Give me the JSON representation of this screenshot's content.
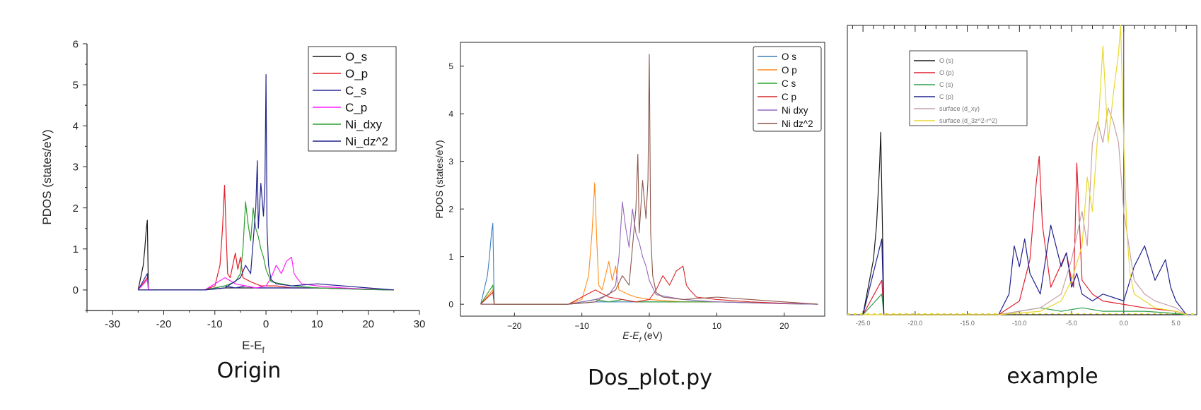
{
  "panels": [
    {
      "caption": "Origin",
      "ylabel": "PDOS (states/eV)",
      "xlabel": "E-E",
      "xlabel_sub": "f",
      "xlabel_unit": "",
      "xlim": [
        -35,
        30
      ],
      "ylim": [
        -0.5,
        6
      ],
      "xticks": [
        "-30",
        "-20",
        "-10",
        "0",
        "10",
        "20",
        "30"
      ],
      "yticks": [
        "0",
        "1",
        "2",
        "3",
        "4",
        "5",
        "6"
      ],
      "legend": [
        "O_s",
        "O_p",
        "C_s",
        "C_p",
        "Ni_dxy",
        "Ni_dz^2"
      ]
    },
    {
      "caption": "Dos_plot.py",
      "ylabel": "PDOS (states/eV)",
      "xlabel": "E-E",
      "xlabel_sub": "f",
      "xlabel_unit": " (eV)",
      "xlim": [
        -28,
        26
      ],
      "ylim": [
        -0.25,
        5.5
      ],
      "xticks": [
        "−20",
        "−10",
        "0",
        "10",
        "20"
      ],
      "yticks": [
        "0",
        "1",
        "2",
        "3",
        "4",
        "5"
      ],
      "legend": [
        "O s",
        "O p",
        "C s",
        "C p",
        "Ni dxy",
        "Ni dz^2"
      ]
    },
    {
      "caption": "example",
      "ylabel": "",
      "xlabel": "",
      "xlabel_sub": "",
      "xlabel_unit": "",
      "xlim": [
        -26.5,
        7
      ],
      "ylim": [
        0,
        4.2
      ],
      "xticks": [
        "-25.0",
        "-20.0",
        "-15.0",
        "-10.0",
        "-5.0",
        "0.0",
        "5.0"
      ],
      "yticks": [],
      "legend": [
        "O (s)",
        "O (p)",
        "C (s)",
        "C (p)",
        "surface (d_xy)",
        "surface (d_3z^2-r^2)"
      ]
    }
  ],
  "colors": {
    "origin": [
      "#1a1a1a",
      "#e0202a",
      "#2a2aa0",
      "#ff20ff",
      "#2e9e2e",
      "#22228c"
    ],
    "dosplot": [
      "#3b7fbf",
      "#ff8c1a",
      "#2ca02c",
      "#d62728",
      "#9467bd",
      "#8c564b"
    ],
    "example": [
      "#1a1a1a",
      "#e02030",
      "#30a050",
      "#202090",
      "#c8a0a8",
      "#e8d830"
    ]
  },
  "chart_data": [
    {
      "type": "line",
      "title": "",
      "xlabel": "E-Ef",
      "ylabel": "PDOS (states/eV)",
      "xlim": [
        -35,
        30
      ],
      "ylim": [
        -0.5,
        6
      ],
      "legend_position": "top-right",
      "series": [
        {
          "name": "O_s",
          "x": [
            -25,
            -24.5,
            -24,
            -23.7,
            -23.4,
            -23.2,
            -23,
            -22,
            -12,
            -8,
            -5,
            0,
            10,
            20,
            25
          ],
          "y": [
            0,
            0.3,
            0.6,
            1.0,
            1.5,
            1.7,
            0,
            0,
            0,
            0.05,
            0.05,
            0.05,
            0.05,
            0.02,
            0
          ]
        },
        {
          "name": "O_p",
          "x": [
            -25,
            -23.2,
            -23,
            -12,
            -10,
            -9,
            -8.5,
            -8.1,
            -7.8,
            -7.5,
            -7,
            -6,
            -5.5,
            -5,
            -4.5,
            -3,
            -2,
            -1,
            0,
            2,
            5,
            10,
            20,
            25
          ],
          "y": [
            0,
            0.3,
            0,
            0,
            0.1,
            0.6,
            1.5,
            2.55,
            1.4,
            0.4,
            0.3,
            0.9,
            0.5,
            0.8,
            0.3,
            0.2,
            0.15,
            0.1,
            0.1,
            0.1,
            0.05,
            0.05,
            0.02,
            0
          ]
        },
        {
          "name": "C_s",
          "x": [
            -25,
            -23.2,
            -23,
            -12,
            -10,
            -8,
            -6,
            -4,
            -2,
            0,
            5,
            10,
            15,
            20,
            25
          ],
          "y": [
            0,
            0.4,
            0,
            0,
            0.05,
            0.1,
            0.05,
            0.1,
            0.05,
            0.05,
            0.05,
            0.05,
            0.03,
            0.01,
            0
          ]
        },
        {
          "name": "C_p",
          "x": [
            -25,
            -23.2,
            -23,
            -12,
            -8,
            -6,
            -4,
            -2,
            0,
            1,
            2,
            3,
            4,
            5,
            5.5,
            6,
            7,
            10,
            15,
            20,
            25
          ],
          "y": [
            0,
            0.25,
            0,
            0,
            0.3,
            0.15,
            0.1,
            0.05,
            0.1,
            0.3,
            0.6,
            0.4,
            0.7,
            0.8,
            0.4,
            0.3,
            0.15,
            0.1,
            0.05,
            0.02,
            0
          ]
        },
        {
          "name": "Ni_dxy",
          "x": [
            -25,
            -12,
            -8,
            -6,
            -5,
            -4.5,
            -4,
            -3.5,
            -3,
            -2.5,
            -2,
            -1.5,
            -1,
            -0.5,
            0,
            1,
            3,
            5,
            10,
            15,
            20,
            25
          ],
          "y": [
            0,
            0,
            0.1,
            0.2,
            0.4,
            1.0,
            2.15,
            1.6,
            1.2,
            2.0,
            1.5,
            1.3,
            1.0,
            0.8,
            0.5,
            0.2,
            0.15,
            0.1,
            0.05,
            0.03,
            0.01,
            0
          ]
        },
        {
          "name": "Ni_dz^2",
          "x": [
            -25,
            -12,
            -8,
            -5,
            -4,
            -3,
            -2.5,
            -2,
            -1.7,
            -1.5,
            -1,
            -0.5,
            -0.2,
            0,
            0.2,
            0.5,
            1,
            2,
            5,
            10,
            15,
            20,
            25
          ],
          "y": [
            0,
            0,
            0.05,
            0.3,
            0.6,
            0.4,
            1.2,
            2.0,
            3.15,
            1.5,
            2.6,
            1.8,
            2.6,
            5.25,
            1.5,
            0.6,
            0.25,
            0.15,
            0.1,
            0.15,
            0.1,
            0.05,
            0
          ]
        }
      ]
    },
    {
      "type": "line",
      "title": "",
      "xlabel": "E-Ef (eV)",
      "ylabel": "PDOS (states/eV)",
      "xlim": [
        -28,
        26
      ],
      "ylim": [
        -0.25,
        5.5
      ],
      "legend_position": "top-right",
      "series": [
        {
          "name": "O s",
          "x": [
            -25,
            -24.5,
            -24,
            -23.7,
            -23.4,
            -23.2,
            -23,
            -22,
            -12,
            -8,
            0,
            10,
            25
          ],
          "y": [
            0,
            0.3,
            0.6,
            1.0,
            1.5,
            1.7,
            0,
            0,
            0,
            0.05,
            0.05,
            0.05,
            0
          ]
        },
        {
          "name": "O p",
          "x": [
            -25,
            -23.2,
            -23,
            -12,
            -10,
            -9,
            -8.5,
            -8.1,
            -7.8,
            -7.5,
            -7,
            -6,
            -5.5,
            -5,
            -4.5,
            -3,
            -2,
            0,
            5,
            10,
            25
          ],
          "y": [
            0,
            0.3,
            0,
            0,
            0.1,
            0.6,
            1.5,
            2.55,
            1.4,
            0.4,
            0.3,
            0.9,
            0.5,
            0.8,
            0.3,
            0.2,
            0.15,
            0.1,
            0.05,
            0.05,
            0
          ]
        },
        {
          "name": "C s",
          "x": [
            -25,
            -23.2,
            -23,
            -12,
            -10,
            -8,
            -6,
            -4,
            -2,
            0,
            5,
            10,
            15,
            20,
            25
          ],
          "y": [
            0,
            0.4,
            0,
            0,
            0.05,
            0.1,
            0.05,
            0.1,
            0.05,
            0.05,
            0.05,
            0.05,
            0.03,
            0.01,
            0
          ]
        },
        {
          "name": "C p",
          "x": [
            -25,
            -23.2,
            -23,
            -12,
            -8,
            -6,
            -4,
            -2,
            0,
            1,
            2,
            3,
            4,
            5,
            5.5,
            6,
            7,
            10,
            15,
            20,
            25
          ],
          "y": [
            0,
            0.25,
            0,
            0,
            0.3,
            0.15,
            0.1,
            0.05,
            0.1,
            0.3,
            0.6,
            0.4,
            0.7,
            0.8,
            0.4,
            0.3,
            0.15,
            0.1,
            0.05,
            0.02,
            0
          ]
        },
        {
          "name": "Ni dxy",
          "x": [
            -25,
            -12,
            -8,
            -6,
            -5,
            -4.5,
            -4,
            -3.5,
            -3,
            -2.5,
            -2,
            -1.5,
            -1,
            -0.5,
            0,
            1,
            3,
            5,
            10,
            15,
            20,
            25
          ],
          "y": [
            0,
            0,
            0.1,
            0.2,
            0.4,
            1.0,
            2.15,
            1.6,
            1.2,
            2.0,
            1.5,
            1.3,
            1.0,
            0.8,
            0.5,
            0.2,
            0.15,
            0.1,
            0.05,
            0.03,
            0.01,
            0
          ]
        },
        {
          "name": "Ni dz^2",
          "x": [
            -25,
            -12,
            -8,
            -5,
            -4,
            -3,
            -2.5,
            -2,
            -1.7,
            -1.5,
            -1,
            -0.5,
            -0.2,
            0,
            0.2,
            0.5,
            1,
            2,
            5,
            10,
            15,
            20,
            25
          ],
          "y": [
            0,
            0,
            0.05,
            0.3,
            0.6,
            0.4,
            1.2,
            2.0,
            3.15,
            1.5,
            2.6,
            1.8,
            2.6,
            5.25,
            1.5,
            0.6,
            0.25,
            0.15,
            0.1,
            0.15,
            0.1,
            0.05,
            0
          ]
        }
      ]
    },
    {
      "type": "line",
      "title": "",
      "xlabel": "",
      "ylabel": "",
      "xlim": [
        -26.5,
        7
      ],
      "ylim": [
        0,
        4.2
      ],
      "legend_position": "top-left",
      "series": [
        {
          "name": "O (s)",
          "x": [
            -25,
            -24.5,
            -24,
            -23.7,
            -23.4,
            -23.3,
            -23.1,
            -23,
            6
          ],
          "y": [
            0,
            0.4,
            0.8,
            1.3,
            2.2,
            2.65,
            1.0,
            0,
            0
          ]
        },
        {
          "name": "O (p)",
          "x": [
            -25,
            -23.2,
            -23,
            -12,
            -10,
            -9,
            -8.4,
            -8.1,
            -7.8,
            -7,
            -5.5,
            -5,
            -4.8,
            -4.5,
            -4,
            -3,
            -2,
            0,
            2,
            5,
            6
          ],
          "y": [
            0,
            0.5,
            0,
            0,
            0.2,
            0.8,
            1.9,
            2.3,
            1.3,
            0.4,
            0.9,
            0.5,
            0.4,
            2.2,
            0.5,
            0.3,
            0.2,
            0.15,
            0.1,
            0.05,
            0
          ]
        },
        {
          "name": "C (s)",
          "x": [
            -25,
            -23.2,
            -23,
            -12,
            -10,
            -8,
            -6,
            -4,
            -2,
            0,
            2,
            4,
            6
          ],
          "y": [
            0,
            0.3,
            0,
            0,
            0.05,
            0.1,
            0.05,
            0.1,
            0.05,
            0.05,
            0.05,
            0.03,
            0
          ]
        },
        {
          "name": "C (p)",
          "x": [
            -25,
            -23.2,
            -23,
            -12,
            -11,
            -10.5,
            -10,
            -9.5,
            -9,
            -8,
            -7,
            -6,
            -5.5,
            -5,
            -4.5,
            -4,
            -3,
            -2,
            0,
            1,
            2,
            3,
            4,
            4.5,
            5,
            6
          ],
          "y": [
            0,
            1.1,
            0,
            0,
            0.3,
            1.0,
            0.7,
            1.1,
            0.6,
            0.3,
            1.3,
            0.7,
            0.9,
            0.4,
            0.6,
            0.3,
            0.2,
            0.3,
            0.2,
            0.7,
            1.0,
            0.5,
            0.8,
            0.4,
            0.2,
            0
          ]
        },
        {
          "name": "surface (d_xy)",
          "x": [
            -25,
            -12,
            -8,
            -6,
            -5,
            -4,
            -3.5,
            -3,
            -2.5,
            -2,
            -1.5,
            -1,
            -0.5,
            0,
            1,
            2,
            3,
            5,
            6
          ],
          "y": [
            0,
            0,
            0.1,
            0.3,
            0.8,
            1.5,
            1.0,
            2.5,
            2.8,
            2.5,
            3.0,
            2.8,
            2.5,
            1.5,
            0.5,
            0.3,
            0.2,
            0.1,
            0
          ]
        },
        {
          "name": "surface (d_3z^2-r^2)",
          "x": [
            -25,
            -12,
            -8,
            -6,
            -5,
            -4,
            -3.5,
            -3,
            -2.5,
            -2,
            -1.5,
            -1,
            -0.5,
            -0.3,
            0,
            0.3,
            0.6,
            1,
            2,
            3,
            5,
            6
          ],
          "y": [
            0,
            0,
            0.05,
            0.2,
            0.5,
            1.0,
            2.0,
            1.5,
            2.6,
            3.9,
            2.5,
            3.2,
            3.8,
            4.2,
            2.5,
            1.2,
            0.6,
            0.3,
            0.2,
            0.1,
            0.05,
            0
          ]
        }
      ]
    }
  ]
}
